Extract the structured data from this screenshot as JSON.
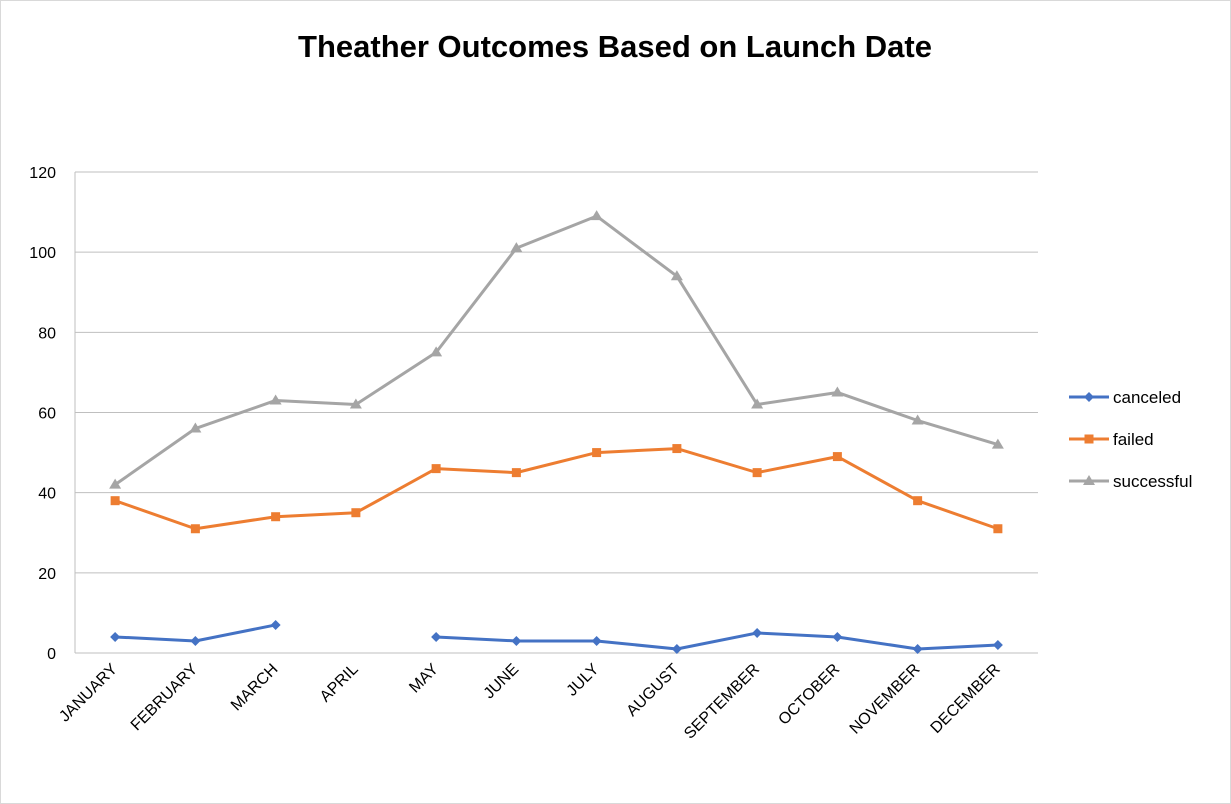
{
  "chart_data": {
    "type": "line",
    "title": "Theather Outcomes Based on Launch Date",
    "xlabel": "",
    "ylabel": "",
    "categories": [
      "JANUARY",
      "FEBRUARY",
      "MARCH",
      "APRIL",
      "MAY",
      "JUNE",
      "JULY",
      "AUGUST",
      "SEPTEMBER",
      "OCTOBER",
      "NOVEMBER",
      "DECEMBER"
    ],
    "y_ticks": [
      "0",
      "20",
      "40",
      "60",
      "80",
      "100",
      "120"
    ],
    "ylim": [
      0,
      120
    ],
    "grid": true,
    "legend_position": "right",
    "series": [
      {
        "name": "canceled",
        "color": "#4472c4",
        "marker": "diamond",
        "values": [
          4,
          3,
          7,
          null,
          4,
          3,
          3,
          1,
          5,
          4,
          1,
          2
        ]
      },
      {
        "name": "failed",
        "color": "#ed7d31",
        "marker": "square",
        "values": [
          38,
          31,
          34,
          35,
          46,
          45,
          50,
          51,
          45,
          49,
          38,
          31
        ]
      },
      {
        "name": "successful",
        "color": "#a5a5a5",
        "marker": "triangle",
        "values": [
          42,
          56,
          63,
          62,
          75,
          101,
          109,
          94,
          62,
          65,
          58,
          52
        ]
      }
    ]
  }
}
